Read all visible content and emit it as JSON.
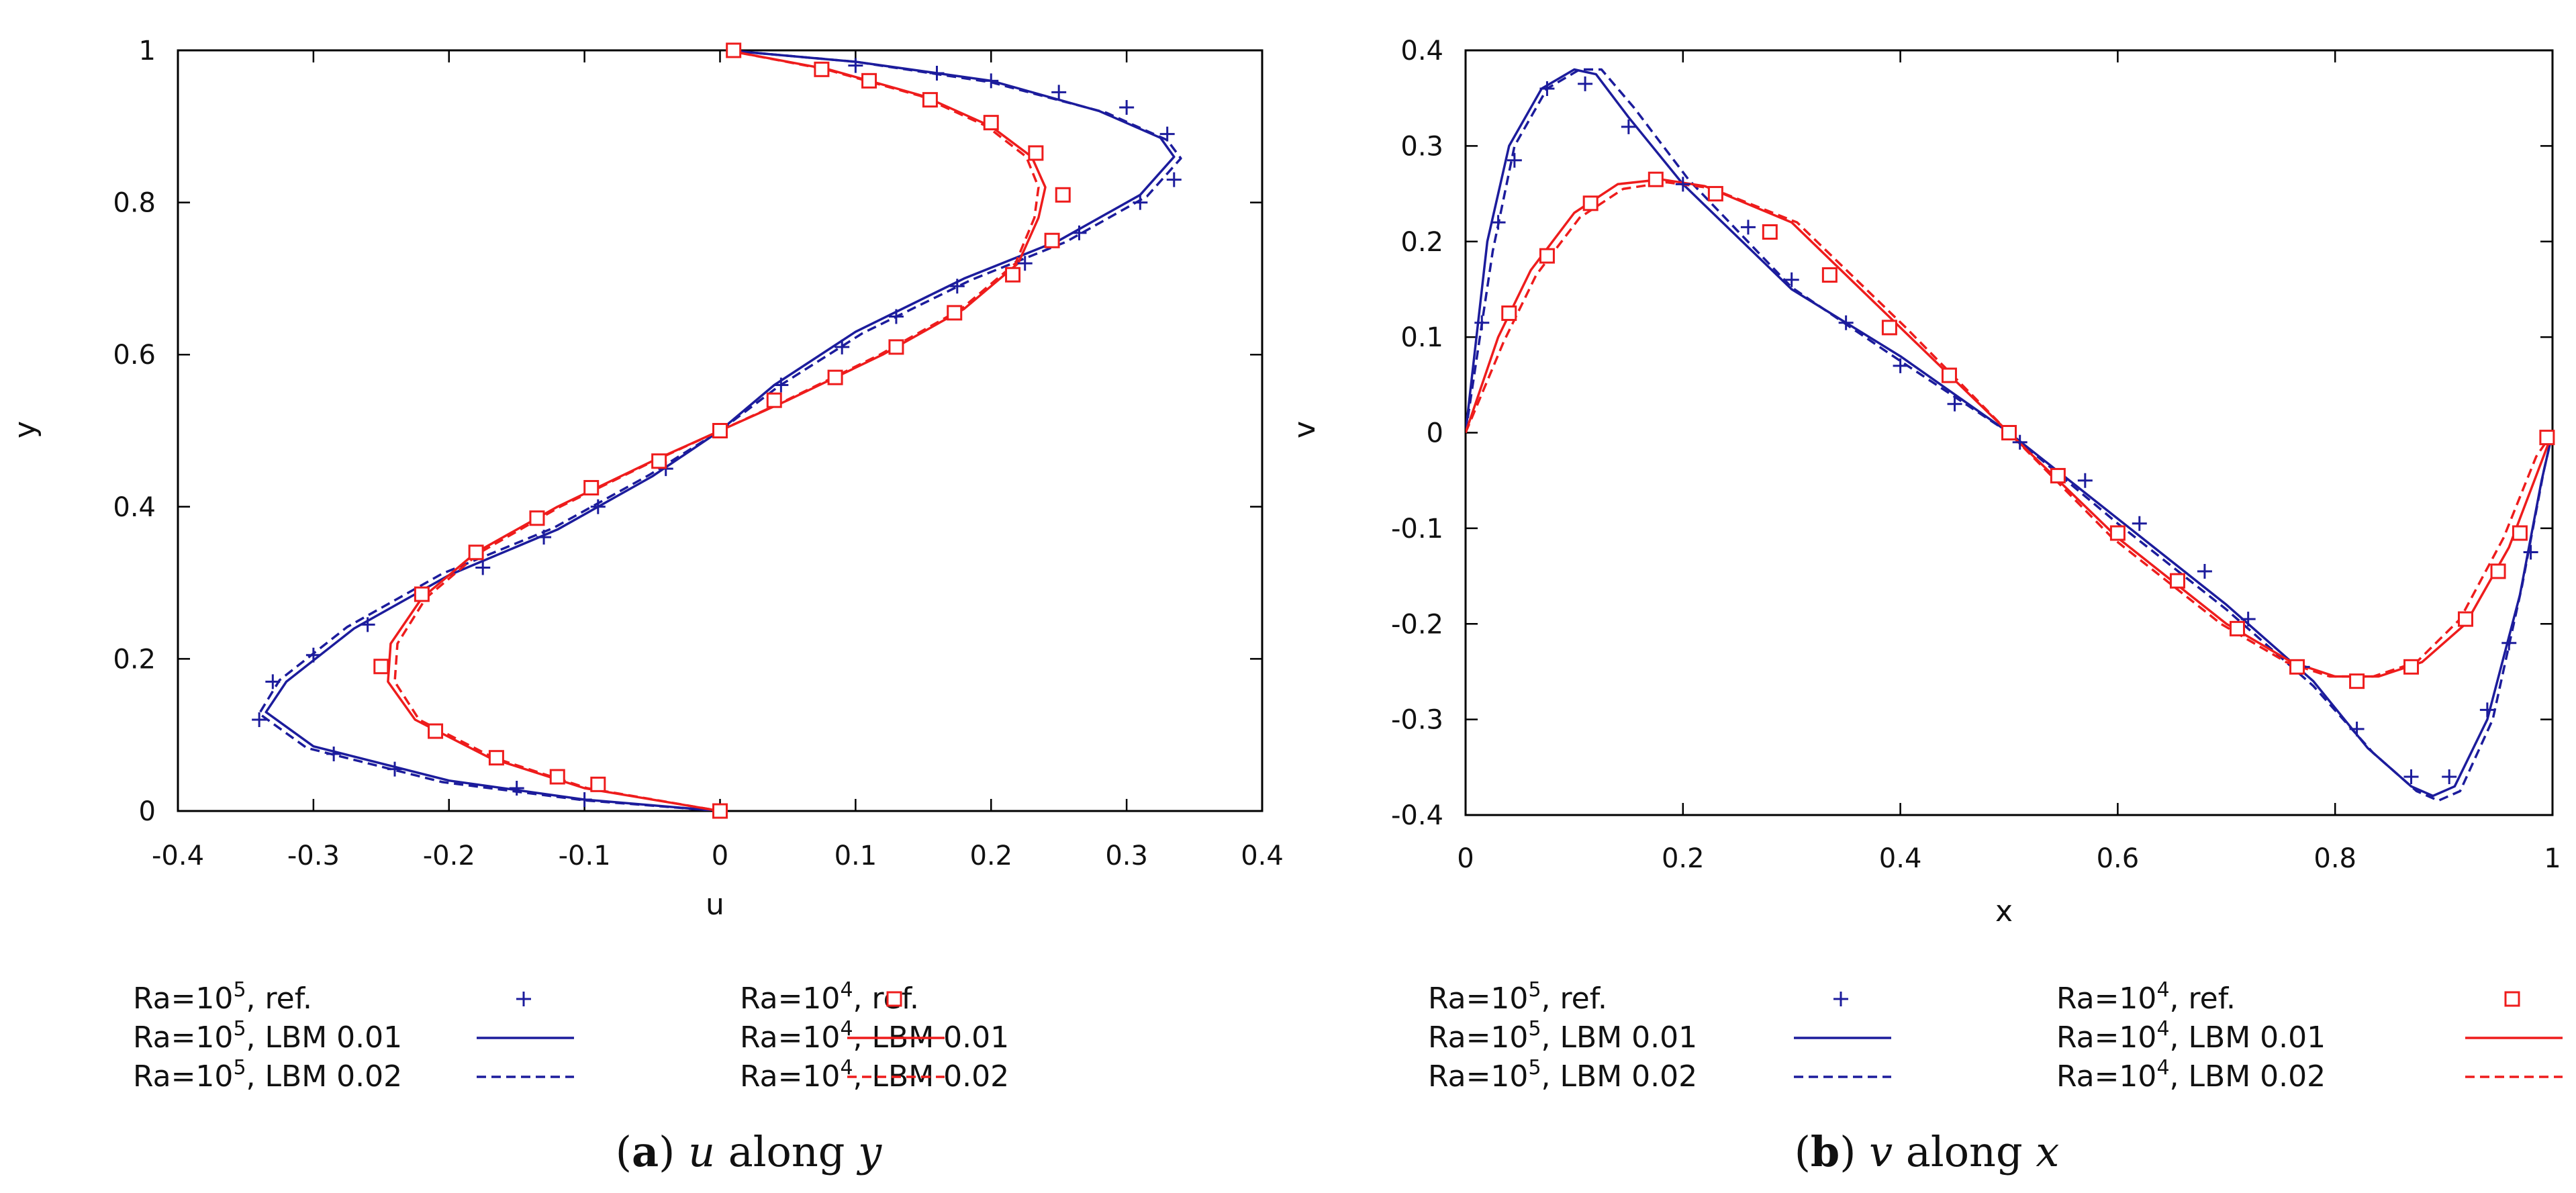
{
  "chart_data": [
    {
      "id": "a",
      "type": "line",
      "caption": {
        "label": "a",
        "var": "u",
        "along": "along",
        "axis": "y"
      },
      "xlabel": "u",
      "ylabel": "y",
      "xlim": [
        -0.4,
        0.4
      ],
      "ylim": [
        0,
        1
      ],
      "xticks": [
        -0.4,
        -0.3,
        -0.2,
        -0.1,
        0,
        0.1,
        0.2,
        0.3,
        0.4
      ],
      "yticks": [
        0,
        0.2,
        0.4,
        0.6,
        0.8,
        1
      ],
      "legend": [
        {
          "prefix": "Ra=10",
          "exp": "5",
          "suffix": ", ref.",
          "color": "#1c1c9c",
          "style": "plus"
        },
        {
          "prefix": "Ra=10",
          "exp": "4",
          "suffix": ", ref.",
          "color": "#ee1c1c",
          "style": "square"
        },
        {
          "prefix": "Ra=10",
          "exp": "5",
          "suffix": ", LBM 0.01",
          "color": "#1c1c9c",
          "style": "solid"
        },
        {
          "prefix": "Ra=10",
          "exp": "4",
          "suffix": ", LBM 0.01",
          "color": "#ee1c1c",
          "style": "solid"
        },
        {
          "prefix": "Ra=10",
          "exp": "5",
          "suffix": ", LBM 0.02",
          "color": "#1c1c9c",
          "style": "dashed"
        },
        {
          "prefix": "Ra=10",
          "exp": "4",
          "suffix": ", LBM 0.02",
          "color": "#ee1c1c",
          "style": "dashed"
        }
      ],
      "series": [
        {
          "name": "Ra=10^5, LBM 0.01",
          "color": "#1c1c9c",
          "style": "solid",
          "x": [
            0.005,
            0.1,
            0.2,
            0.28,
            0.325,
            0.335,
            0.31,
            0.25,
            0.18,
            0.1,
            0.04,
            0.0,
            -0.05,
            -0.12,
            -0.2,
            -0.27,
            -0.32,
            -0.335,
            -0.3,
            -0.2,
            -0.1,
            0.0
          ],
          "y": [
            1.0,
            0.985,
            0.96,
            0.92,
            0.885,
            0.86,
            0.81,
            0.75,
            0.7,
            0.63,
            0.56,
            0.5,
            0.44,
            0.37,
            0.31,
            0.24,
            0.17,
            0.13,
            0.085,
            0.04,
            0.015,
            0.0
          ]
        },
        {
          "name": "Ra=10^5, LBM 0.02",
          "color": "#1c1c9c",
          "style": "dashed",
          "x": [
            0.005,
            0.1,
            0.2,
            0.285,
            0.33,
            0.34,
            0.315,
            0.255,
            0.185,
            0.105,
            0.043,
            0.0,
            -0.052,
            -0.123,
            -0.205,
            -0.275,
            -0.325,
            -0.34,
            -0.305,
            -0.205,
            -0.1,
            0.0
          ],
          "y": [
            1.0,
            0.985,
            0.958,
            0.918,
            0.882,
            0.858,
            0.808,
            0.748,
            0.698,
            0.628,
            0.558,
            0.5,
            0.442,
            0.372,
            0.312,
            0.242,
            0.172,
            0.128,
            0.083,
            0.038,
            0.014,
            0.0
          ]
        },
        {
          "name": "Ra=10^4, LBM 0.01",
          "color": "#ee1c1c",
          "style": "solid",
          "x": [
            0.005,
            0.08,
            0.15,
            0.2,
            0.23,
            0.24,
            0.235,
            0.22,
            0.18,
            0.12,
            0.05,
            0.0,
            -0.05,
            -0.12,
            -0.18,
            -0.22,
            -0.243,
            -0.245,
            -0.225,
            -0.17,
            -0.1,
            0.0
          ],
          "y": [
            1.0,
            0.975,
            0.94,
            0.9,
            0.86,
            0.82,
            0.78,
            0.72,
            0.66,
            0.6,
            0.54,
            0.5,
            0.46,
            0.4,
            0.34,
            0.28,
            0.22,
            0.17,
            0.12,
            0.07,
            0.03,
            0.0
          ]
        },
        {
          "name": "Ra=10^4, LBM 0.02",
          "color": "#ee1c1c",
          "style": "dashed",
          "x": [
            0.005,
            0.078,
            0.148,
            0.197,
            0.226,
            0.235,
            0.232,
            0.218,
            0.178,
            0.118,
            0.049,
            0.0,
            -0.049,
            -0.118,
            -0.177,
            -0.217,
            -0.238,
            -0.24,
            -0.222,
            -0.167,
            -0.098,
            0.0
          ],
          "y": [
            1.0,
            0.975,
            0.94,
            0.9,
            0.86,
            0.82,
            0.78,
            0.72,
            0.66,
            0.6,
            0.54,
            0.5,
            0.46,
            0.4,
            0.34,
            0.28,
            0.22,
            0.17,
            0.12,
            0.07,
            0.03,
            0.0
          ]
        },
        {
          "name": "Ra=10^5, ref.",
          "color": "#1c1c9c",
          "style": "plus",
          "x": [
            0.1,
            0.16,
            0.2,
            0.25,
            0.3,
            0.33,
            0.335,
            0.31,
            0.265,
            0.225,
            0.175,
            0.13,
            0.09,
            0.045,
            -0.04,
            -0.09,
            -0.13,
            -0.175,
            -0.26,
            -0.3,
            -0.33,
            -0.34,
            -0.285,
            -0.24,
            -0.15,
            -0.1
          ],
          "y": [
            0.98,
            0.97,
            0.96,
            0.945,
            0.925,
            0.89,
            0.83,
            0.8,
            0.76,
            0.72,
            0.69,
            0.65,
            0.61,
            0.56,
            0.45,
            0.4,
            0.36,
            0.32,
            0.245,
            0.205,
            0.17,
            0.12,
            0.075,
            0.055,
            0.03,
            0.015
          ]
        },
        {
          "name": "Ra=10^4, ref.",
          "color": "#ee1c1c",
          "style": "square",
          "x": [
            0.01,
            0.075,
            0.11,
            0.155,
            0.2,
            0.233,
            0.253,
            0.245,
            0.216,
            0.173,
            0.13,
            0.085,
            0.04,
            0.0,
            -0.045,
            -0.095,
            -0.135,
            -0.18,
            -0.22,
            -0.25,
            -0.21,
            -0.165,
            -0.12,
            -0.09,
            0.0
          ],
          "y": [
            1.0,
            0.975,
            0.96,
            0.935,
            0.905,
            0.865,
            0.81,
            0.75,
            0.705,
            0.655,
            0.61,
            0.57,
            0.54,
            0.5,
            0.46,
            0.425,
            0.385,
            0.34,
            0.285,
            0.19,
            0.105,
            0.07,
            0.045,
            0.035,
            0.0
          ]
        }
      ]
    },
    {
      "id": "b",
      "type": "line",
      "caption": {
        "label": "b",
        "var": "v",
        "along": "along",
        "axis": "x"
      },
      "xlabel": "x",
      "ylabel": "v",
      "xlim": [
        0,
        1
      ],
      "ylim": [
        -0.4,
        0.4
      ],
      "xticks": [
        0,
        0.2,
        0.4,
        0.6,
        0.8,
        1
      ],
      "yticks": [
        -0.4,
        -0.3,
        -0.2,
        -0.1,
        0,
        0.1,
        0.2,
        0.3,
        0.4
      ],
      "legend": [
        {
          "prefix": "Ra=10",
          "exp": "5",
          "suffix": ", ref.",
          "color": "#1c1c9c",
          "style": "plus"
        },
        {
          "prefix": "Ra=10",
          "exp": "4",
          "suffix": ", ref.",
          "color": "#ee1c1c",
          "style": "square"
        },
        {
          "prefix": "Ra=10",
          "exp": "5",
          "suffix": ", LBM 0.01",
          "color": "#1c1c9c",
          "style": "solid"
        },
        {
          "prefix": "Ra=10",
          "exp": "4",
          "suffix": ", LBM 0.01",
          "color": "#ee1c1c",
          "style": "solid"
        },
        {
          "prefix": "Ra=10",
          "exp": "5",
          "suffix": ", LBM 0.02",
          "color": "#1c1c9c",
          "style": "dashed"
        },
        {
          "prefix": "Ra=10",
          "exp": "4",
          "suffix": ", LBM 0.02",
          "color": "#ee1c1c",
          "style": "dashed"
        }
      ],
      "series": [
        {
          "name": "Ra=10^5, LBM 0.01",
          "color": "#1c1c9c",
          "style": "solid",
          "x": [
            0,
            0.02,
            0.04,
            0.07,
            0.1,
            0.12,
            0.15,
            0.2,
            0.3,
            0.4,
            0.5,
            0.6,
            0.7,
            0.78,
            0.83,
            0.87,
            0.89,
            0.91,
            0.94,
            0.97,
            0.99,
            1.0
          ],
          "y": [
            0,
            0.2,
            0.3,
            0.36,
            0.38,
            0.375,
            0.33,
            0.26,
            0.15,
            0.08,
            0.0,
            -0.09,
            -0.18,
            -0.26,
            -0.33,
            -0.37,
            -0.38,
            -0.37,
            -0.3,
            -0.17,
            -0.05,
            0
          ]
        },
        {
          "name": "Ra=10^5, LBM 0.02",
          "color": "#1c1c9c",
          "style": "dashed",
          "x": [
            0,
            0.025,
            0.045,
            0.075,
            0.105,
            0.125,
            0.155,
            0.205,
            0.3,
            0.4,
            0.5,
            0.6,
            0.7,
            0.78,
            0.835,
            0.875,
            0.895,
            0.915,
            0.945,
            0.972,
            0.992,
            1.0
          ],
          "y": [
            0,
            0.19,
            0.3,
            0.36,
            0.38,
            0.38,
            0.34,
            0.265,
            0.152,
            0.075,
            0.0,
            -0.095,
            -0.185,
            -0.265,
            -0.335,
            -0.375,
            -0.385,
            -0.375,
            -0.3,
            -0.16,
            -0.04,
            0
          ]
        },
        {
          "name": "Ra=10^4, LBM 0.01",
          "color": "#ee1c1c",
          "style": "solid",
          "x": [
            0,
            0.03,
            0.06,
            0.1,
            0.14,
            0.18,
            0.22,
            0.3,
            0.4,
            0.5,
            0.6,
            0.7,
            0.76,
            0.8,
            0.84,
            0.88,
            0.92,
            0.96,
            0.99,
            1.0
          ],
          "y": [
            0,
            0.1,
            0.17,
            0.23,
            0.26,
            0.265,
            0.258,
            0.22,
            0.11,
            0.0,
            -0.11,
            -0.2,
            -0.24,
            -0.255,
            -0.255,
            -0.24,
            -0.2,
            -0.12,
            -0.03,
            0
          ]
        },
        {
          "name": "Ra=10^4, LBM 0.02",
          "color": "#ee1c1c",
          "style": "dashed",
          "x": [
            0,
            0.035,
            0.065,
            0.105,
            0.145,
            0.185,
            0.225,
            0.305,
            0.405,
            0.5,
            0.595,
            0.695,
            0.755,
            0.795,
            0.835,
            0.875,
            0.915,
            0.955,
            0.985,
            1.0
          ],
          "y": [
            0,
            0.095,
            0.165,
            0.225,
            0.255,
            0.262,
            0.256,
            0.22,
            0.11,
            0.0,
            -0.11,
            -0.2,
            -0.24,
            -0.255,
            -0.255,
            -0.24,
            -0.195,
            -0.11,
            -0.025,
            0
          ]
        },
        {
          "name": "Ra=10^5, ref.",
          "color": "#1c1c9c",
          "style": "plus",
          "x": [
            0.015,
            0.03,
            0.045,
            0.075,
            0.11,
            0.15,
            0.2,
            0.26,
            0.3,
            0.35,
            0.4,
            0.45,
            0.51,
            0.57,
            0.62,
            0.68,
            0.72,
            0.77,
            0.82,
            0.87,
            0.905,
            0.94,
            0.96,
            0.98
          ],
          "y": [
            0.115,
            0.22,
            0.285,
            0.36,
            0.365,
            0.32,
            0.26,
            0.215,
            0.16,
            0.115,
            0.07,
            0.03,
            -0.01,
            -0.05,
            -0.095,
            -0.145,
            -0.195,
            -0.245,
            -0.31,
            -0.36,
            -0.36,
            -0.29,
            -0.22,
            -0.125
          ]
        },
        {
          "name": "Ra=10^4, ref.",
          "color": "#ee1c1c",
          "style": "square",
          "x": [
            0.04,
            0.075,
            0.115,
            0.175,
            0.23,
            0.28,
            0.335,
            0.39,
            0.445,
            0.5,
            0.545,
            0.6,
            0.655,
            0.71,
            0.765,
            0.82,
            0.87,
            0.92,
            0.95,
            0.97,
            0.995
          ],
          "y": [
            0.125,
            0.185,
            0.24,
            0.265,
            0.25,
            0.21,
            0.165,
            0.11,
            0.06,
            0.0,
            -0.045,
            -0.105,
            -0.155,
            -0.205,
            -0.245,
            -0.26,
            -0.245,
            -0.195,
            -0.145,
            -0.105,
            -0.005
          ]
        }
      ]
    }
  ]
}
